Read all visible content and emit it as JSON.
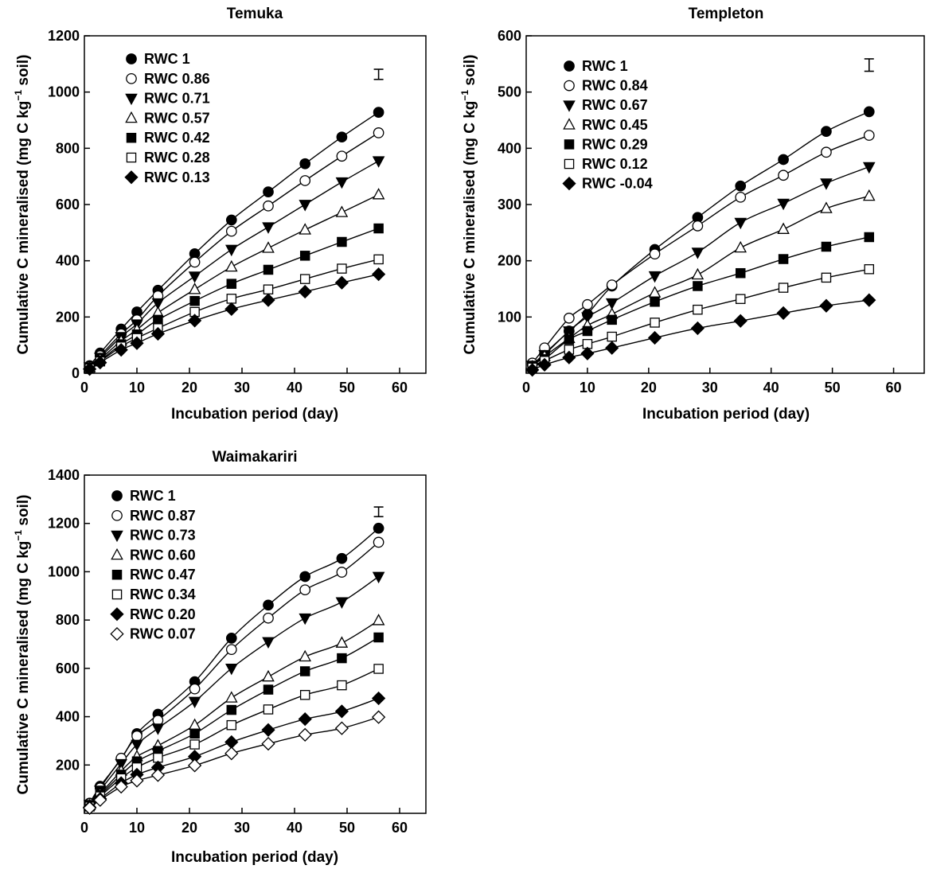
{
  "chart_data": [
    {
      "type": "scatter",
      "title": "Temuka",
      "xlabel": "Incubation period (day)",
      "ylabel_main": "Cumulative C mineralised (mg C kg",
      "ylabel_sup": "−1",
      "ylabel_end": " soil)",
      "xlim": [
        0,
        65
      ],
      "ylim": [
        0,
        1200
      ],
      "xticks": [
        0,
        10,
        20,
        30,
        40,
        50,
        60
      ],
      "yticks": [
        0,
        200,
        400,
        600,
        800,
        1000,
        1200
      ],
      "x": [
        1,
        3,
        7,
        10,
        14,
        21,
        28,
        35,
        42,
        49,
        56
      ],
      "error_bar": {
        "x": 56,
        "y": 1063,
        "half": 18
      },
      "legend_position": "top-left",
      "series": [
        {
          "name": "RWC 1",
          "marker": "circle-filled",
          "values": [
            27,
            72,
            157,
            218,
            295,
            425,
            545,
            645,
            745,
            840,
            928
          ]
        },
        {
          "name": "RWC 0.86",
          "marker": "circle-open",
          "values": [
            24,
            62,
            140,
            190,
            275,
            395,
            505,
            595,
            685,
            772,
            855
          ]
        },
        {
          "name": "RWC 0.71",
          "marker": "triangle-down-filled",
          "values": [
            22,
            56,
            130,
            175,
            250,
            345,
            440,
            520,
            600,
            680,
            755
          ]
        },
        {
          "name": "RWC 0.57",
          "marker": "triangle-up-open",
          "values": [
            20,
            50,
            115,
            155,
            215,
            298,
            378,
            445,
            510,
            572,
            635
          ]
        },
        {
          "name": "RWC 0.42",
          "marker": "square-filled",
          "values": [
            18,
            45,
            103,
            138,
            190,
            257,
            318,
            368,
            418,
            467,
            515
          ]
        },
        {
          "name": "RWC 0.28",
          "marker": "square-open",
          "values": [
            17,
            42,
            95,
            125,
            160,
            218,
            265,
            298,
            335,
            372,
            405
          ]
        },
        {
          "name": "RWC 0.13",
          "marker": "diamond-filled",
          "values": [
            15,
            38,
            83,
            107,
            140,
            187,
            228,
            260,
            290,
            322,
            352
          ]
        }
      ]
    },
    {
      "type": "scatter",
      "title": "Templeton",
      "xlabel": "Incubation period (day)",
      "ylabel_main": "Cumulative C mineralised (mg C kg",
      "ylabel_sup": "−1",
      "ylabel_end": " soil)",
      "xlim": [
        0,
        65
      ],
      "ylim": [
        0,
        600
      ],
      "xticks": [
        0,
        10,
        20,
        30,
        40,
        50,
        60
      ],
      "yticks": [
        100,
        200,
        300,
        400,
        500,
        600
      ],
      "x": [
        1,
        3,
        7,
        10,
        14,
        21,
        28,
        35,
        42,
        49,
        56
      ],
      "error_bar": {
        "x": 56,
        "y": 548,
        "half": 11
      },
      "legend_position": "top-left",
      "series": [
        {
          "name": "RWC 1",
          "marker": "circle-filled",
          "values": [
            15,
            35,
            75,
            105,
            155,
            220,
            277,
            333,
            380,
            430,
            465
          ]
        },
        {
          "name": "RWC 0.84",
          "marker": "circle-open",
          "values": [
            18,
            45,
            98,
            122,
            157,
            212,
            262,
            313,
            352,
            393,
            423
          ]
        },
        {
          "name": "RWC 0.67",
          "marker": "triangle-down-filled",
          "values": [
            14,
            33,
            75,
            100,
            125,
            173,
            215,
            268,
            302,
            338,
            367
          ]
        },
        {
          "name": "RWC 0.45",
          "marker": "triangle-up-open",
          "values": [
            12,
            30,
            62,
            85,
            105,
            143,
            175,
            223,
            256,
            293,
            315
          ]
        },
        {
          "name": "RWC 0.29",
          "marker": "square-filled",
          "values": [
            11,
            25,
            60,
            75,
            95,
            127,
            155,
            178,
            203,
            225,
            242
          ]
        },
        {
          "name": "RWC 0.12",
          "marker": "square-open",
          "values": [
            10,
            22,
            42,
            52,
            65,
            90,
            113,
            132,
            152,
            170,
            185
          ]
        },
        {
          "name": "RWC -0.04",
          "marker": "diamond-filled",
          "values": [
            6,
            15,
            28,
            35,
            45,
            63,
            80,
            93,
            107,
            120,
            130
          ]
        }
      ]
    },
    {
      "type": "scatter",
      "title": "Waimakariri",
      "xlabel": "Incubation period (day)",
      "ylabel_main": "Cumulative C mineralised (mg C kg",
      "ylabel_sup": "−1",
      "ylabel_end": " soil)",
      "xlim": [
        0,
        65
      ],
      "ylim": [
        0,
        1400
      ],
      "xticks": [
        0,
        10,
        20,
        30,
        40,
        50,
        60
      ],
      "yticks": [
        200,
        400,
        600,
        800,
        1000,
        1200,
        1400
      ],
      "x": [
        1,
        3,
        7,
        10,
        14,
        21,
        28,
        35,
        42,
        49,
        56
      ],
      "error_bar": {
        "x": 56,
        "y": 1248,
        "half": 20
      },
      "legend_position": "top-left",
      "series": [
        {
          "name": "RWC 1",
          "marker": "circle-filled",
          "values": [
            42,
            112,
            225,
            330,
            410,
            545,
            725,
            862,
            980,
            1055,
            1180
          ]
        },
        {
          "name": "RWC 0.87",
          "marker": "circle-open",
          "values": [
            40,
            105,
            228,
            320,
            385,
            515,
            678,
            808,
            925,
            998,
            1122
          ]
        },
        {
          "name": "RWC 0.73",
          "marker": "triangle-down-filled",
          "values": [
            36,
            95,
            205,
            285,
            352,
            463,
            600,
            710,
            808,
            875,
            980
          ]
        },
        {
          "name": "RWC 0.60",
          "marker": "triangle-up-open",
          "values": [
            32,
            80,
            175,
            235,
            280,
            365,
            478,
            565,
            648,
            705,
            798
          ]
        },
        {
          "name": "RWC 0.47",
          "marker": "square-filled",
          "values": [
            30,
            75,
            160,
            215,
            258,
            330,
            428,
            512,
            588,
            642,
            728
          ]
        },
        {
          "name": "RWC 0.34",
          "marker": "square-open",
          "values": [
            28,
            70,
            145,
            190,
            230,
            285,
            365,
            430,
            490,
            530,
            598
          ]
        },
        {
          "name": "RWC 0.20",
          "marker": "diamond-filled",
          "values": [
            25,
            60,
            125,
            160,
            190,
            235,
            295,
            345,
            390,
            422,
            476
          ]
        },
        {
          "name": "RWC 0.07",
          "marker": "diamond-open",
          "values": [
            22,
            55,
            110,
            135,
            158,
            198,
            248,
            288,
            325,
            352,
            398
          ]
        }
      ]
    }
  ]
}
